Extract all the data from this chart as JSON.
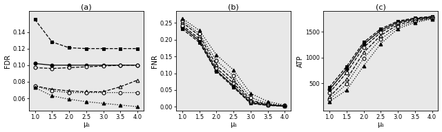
{
  "x": [
    1.0,
    1.5,
    2.0,
    2.5,
    3.0,
    3.5,
    4.0
  ],
  "panel_titles": [
    "(a)",
    "(b)",
    "(c)"
  ],
  "xlabels": [
    "μ₁",
    "μ₁",
    "μ₁"
  ],
  "ylabels": [
    "FDR",
    "FNR",
    "ATP"
  ],
  "fdr_series": [
    [
      0.155,
      0.128,
      0.121,
      0.12,
      0.12,
      0.12,
      0.12
    ],
    [
      0.102,
      0.1,
      0.1,
      0.1,
      0.1,
      0.1,
      0.1
    ],
    [
      0.097,
      0.096,
      0.097,
      0.098,
      0.099,
      0.1,
      0.1
    ],
    [
      0.075,
      0.071,
      0.069,
      0.068,
      0.068,
      0.074,
      0.082
    ],
    [
      0.075,
      0.069,
      0.067,
      0.067,
      0.067,
      0.067,
      0.067
    ],
    [
      0.073,
      0.063,
      0.059,
      0.056,
      0.054,
      0.052,
      0.05
    ]
  ],
  "fnr_series": [
    [
      0.232,
      0.192,
      0.105,
      0.058,
      0.01,
      0.004,
      0.002
    ],
    [
      0.238,
      0.197,
      0.108,
      0.062,
      0.012,
      0.005,
      0.002
    ],
    [
      0.243,
      0.203,
      0.115,
      0.07,
      0.016,
      0.006,
      0.002
    ],
    [
      0.252,
      0.212,
      0.125,
      0.08,
      0.02,
      0.007,
      0.003
    ],
    [
      0.258,
      0.218,
      0.138,
      0.092,
      0.028,
      0.01,
      0.004
    ],
    [
      0.264,
      0.228,
      0.155,
      0.11,
      0.04,
      0.016,
      0.005
    ]
  ],
  "atp_series": [
    [
      430,
      830,
      1300,
      1560,
      1710,
      1770,
      1800
    ],
    [
      380,
      780,
      1260,
      1530,
      1690,
      1755,
      1790
    ],
    [
      320,
      710,
      1200,
      1490,
      1670,
      1740,
      1780
    ],
    [
      240,
      580,
      1100,
      1430,
      1640,
      1720,
      1770
    ],
    [
      190,
      490,
      990,
      1360,
      1600,
      1700,
      1760
    ],
    [
      150,
      370,
      840,
      1270,
      1560,
      1680,
      1750
    ]
  ],
  "series_styles": [
    {
      "marker": "s",
      "filled": true,
      "linestyle": "--",
      "color": "black"
    },
    {
      "marker": "o",
      "filled": true,
      "linestyle": "-",
      "color": "black"
    },
    {
      "marker": "o",
      "filled": false,
      "linestyle": "--",
      "color": "black"
    },
    {
      "marker": "^",
      "filled": false,
      "linestyle": "--",
      "color": "black"
    },
    {
      "marker": "o",
      "filled": false,
      "linestyle": ":",
      "color": "black"
    },
    {
      "marker": "^",
      "filled": true,
      "linestyle": ":",
      "color": "black"
    }
  ],
  "fdr_ylim": [
    0.045,
    0.165
  ],
  "fdr_yticks": [
    0.06,
    0.08,
    0.1,
    0.12,
    0.14
  ],
  "fnr_ylim": [
    -0.012,
    0.285
  ],
  "fnr_yticks": [
    0.0,
    0.05,
    0.1,
    0.15,
    0.2,
    0.25
  ],
  "atp_ylim": [
    -30,
    1900
  ],
  "atp_yticks": [
    500,
    1000,
    1500
  ],
  "xlim": [
    0.82,
    4.18
  ],
  "xticks": [
    1.0,
    1.5,
    2.0,
    2.5,
    3.0,
    3.5,
    4.0
  ],
  "ax_facecolor": "#e8e8e8",
  "fig_facecolor": "#ffffff"
}
